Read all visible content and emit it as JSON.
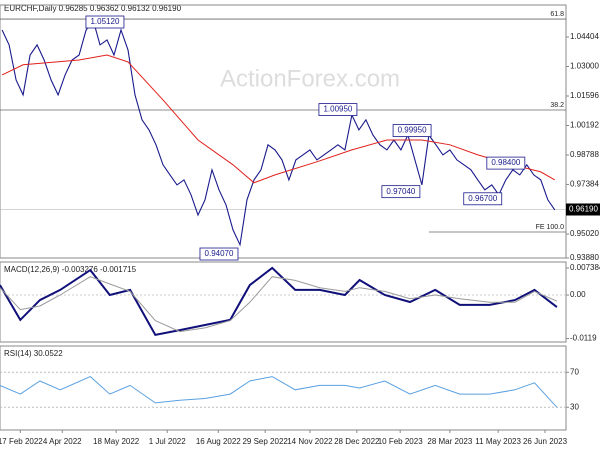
{
  "header": "EURCHF,Daily  0.96285 0.96362 0.96132 0.96190",
  "watermark": "ActionForex.com",
  "chart_data": [
    {
      "type": "line",
      "title": "EURCHF,Daily  0.96285 0.96362 0.96132 0.96190",
      "x": [
        0,
        1,
        2,
        3,
        4,
        5,
        6,
        7,
        8,
        9,
        10,
        11,
        12,
        13,
        14,
        15,
        16,
        17,
        18,
        19,
        20,
        21,
        22,
        23,
        24,
        25,
        26,
        27,
        28,
        29,
        30,
        31,
        32,
        33,
        34,
        35,
        36,
        37,
        38,
        39,
        40,
        41,
        42,
        43,
        44,
        45,
        46,
        47,
        48,
        49,
        50,
        51,
        52,
        53,
        54,
        55,
        56,
        57,
        58,
        59,
        60,
        61,
        62,
        63,
        64,
        65,
        66,
        67,
        68,
        69,
        70,
        71,
        72,
        73,
        74,
        75,
        76,
        77,
        78,
        79
      ],
      "xlim": [
        -0.3,
        80.6
      ],
      "xticks": [
        {
          "value": 2.6,
          "label": "17 Feb 2022"
        },
        {
          "value": 8.6,
          "label": "4 Apr 2022"
        },
        {
          "value": 16.3,
          "label": "18 May 2022"
        },
        {
          "value": 23.6,
          "label": "1 Jul 2022"
        },
        {
          "value": 30.9,
          "label": "16 Aug 2022"
        },
        {
          "value": 37.6,
          "label": "29 Sep 2022"
        },
        {
          "value": 44,
          "label": "14 Nov 2022"
        },
        {
          "value": 50.7,
          "label": "28 Dec 2022"
        },
        {
          "value": 56.9,
          "label": "10 Feb 2023"
        },
        {
          "value": 64,
          "label": "28 Mar 2023"
        },
        {
          "value": 70.9,
          "label": "11 May 2023"
        },
        {
          "value": 77.6,
          "label": "26 Jun 2023"
        }
      ],
      "ylim": [
        0.9388,
        1.0593
      ],
      "yticks": [
        {
          "value": 1.04404,
          "label": "1.04404"
        },
        {
          "value": 1.03,
          "label": "1.03000"
        },
        {
          "value": 1.01596,
          "label": "1.01596"
        },
        {
          "value": 1.00192,
          "label": "1.00192"
        },
        {
          "value": 0.98788,
          "label": "0.98788"
        },
        {
          "value": 0.97384,
          "label": "0.97384"
        },
        {
          "value": 0.9502,
          "label": "0.95020"
        },
        {
          "value": 0.9388,
          "label": "0.93880"
        }
      ],
      "series": [
        {
          "name": "EURCHF",
          "color": "#1a1a8c",
          "values": [
            1.0474,
            1.0403,
            1.0236,
            1.0165,
            1.0355,
            1.0403,
            1.0331,
            1.0236,
            1.0165,
            1.026,
            1.0331,
            1.0355,
            1.0474,
            1.0522,
            1.0403,
            1.0427,
            1.0355,
            1.0474,
            1.0379,
            1.0165,
            1.0046,
            0.9998,
            0.9927,
            0.9832,
            0.9784,
            0.9736,
            0.976,
            0.9689,
            0.9593,
            0.9665,
            0.9808,
            0.9713,
            0.9641,
            0.9522,
            0.9451,
            0.9665,
            0.976,
            0.9808,
            0.9927,
            0.9903,
            0.9855,
            0.976,
            0.9855,
            0.9879,
            0.9903,
            0.9855,
            0.9879,
            0.9903,
            0.9927,
            0.9903,
            1.0069,
            0.9998,
            1.0046,
            0.9974,
            0.9927,
            0.9903,
            0.995,
            0.9903,
            0.9974,
            0.9855,
            0.9736,
            0.9974,
            0.9927,
            0.9879,
            0.9903,
            0.9855,
            0.9832,
            0.9808,
            0.976,
            0.9713,
            0.9736,
            0.9689,
            0.976,
            0.9808,
            0.9784,
            0.9832,
            0.9784,
            0.976,
            0.9665,
            0.9617
          ]
        },
        {
          "name": "MA",
          "color": "#e0201b",
          "x": [
            0,
            3,
            11,
            15,
            18,
            23,
            28,
            33,
            36,
            39,
            45,
            50,
            55,
            60,
            64,
            68,
            73,
            77,
            79
          ],
          "values": [
            1.026,
            1.0308,
            1.0331,
            1.0355,
            1.0322,
            1.0141,
            0.995,
            0.9832,
            0.9746,
            0.9784,
            0.9846,
            0.9903,
            0.995,
            0.995,
            0.9927,
            0.9879,
            0.9832,
            0.9798,
            0.976
          ]
        }
      ],
      "levels": [
        {
          "label": "61.8",
          "value": 1.0526
        },
        {
          "label": "38.2",
          "value": 1.0093
        },
        {
          "label": "FE 100.0",
          "value": 0.9512,
          "from": 61
        }
      ],
      "last_price": {
        "value": 0.9619,
        "label": "0.96190"
      },
      "annotations": [
        {
          "text": "1.05120",
          "x": 14.7,
          "value": 1.0512
        },
        {
          "text": "1.00950",
          "x": 48,
          "value": 1.0095
        },
        {
          "text": "0.99950",
          "x": 58.6,
          "value": 0.9995
        },
        {
          "text": "0.98400",
          "x": 72,
          "value": 0.984
        },
        {
          "text": "0.97040",
          "x": 57,
          "value": 0.9704
        },
        {
          "text": "0.96700",
          "x": 68.7,
          "value": 0.967
        },
        {
          "text": "0.94070",
          "x": 31,
          "value": 0.9407
        }
      ]
    },
    {
      "type": "line",
      "title": "MACD(12,26,9) -0.003276 -0.001715",
      "x": [
        -0.3,
        2.6,
        5.4,
        8.3,
        12.6,
        15.4,
        18.3,
        21.9,
        25.4,
        29,
        32.6,
        35.4,
        38.6,
        41.9,
        45.4,
        49,
        51.1,
        54.7,
        58.3,
        61.9,
        65.4,
        69.7,
        73.3,
        76.1,
        79.3
      ],
      "xlim": [
        -0.3,
        80.6
      ],
      "ylim": [
        -0.01284,
        0.00902
      ],
      "yticks": [
        {
          "value": 0.007384,
          "label": "0.007384"
        },
        {
          "value": 0,
          "label": "0.00"
        },
        {
          "value": -0.0119,
          "label": "-0.0119"
        }
      ],
      "series": [
        {
          "name": "MACD",
          "color": "#10107a",
          "values": [
            0.0027,
            -0.0068,
            -0.0014,
            0.0014,
            0.0068,
            0,
            0.0014,
            -0.0109,
            -0.0096,
            -0.0082,
            -0.0068,
            0.0027,
            0.0074,
            0.0014,
            0.0014,
            0,
            0.0041,
            0,
            -0.0019,
            0.0014,
            -0.0027,
            -0.0027,
            -0.0014,
            0.0014,
            -0.0033
          ]
        },
        {
          "name": "Signal",
          "color": "#9a9a9a",
          "values": [
            0.002,
            -0.004,
            -0.003,
            0,
            0.005,
            0.003,
            0.001,
            -0.007,
            -0.01,
            -0.009,
            -0.007,
            -0.002,
            0.005,
            0.004,
            0.002,
            0.001,
            0.002,
            0.001,
            -0.001,
            0,
            -0.001,
            -0.002,
            -0.002,
            0.001,
            -0.0017
          ]
        }
      ]
    },
    {
      "type": "line",
      "title": "RSI(14) 30.0522",
      "x": [
        -0.3,
        2.6,
        5.4,
        8.3,
        12.6,
        15.4,
        18.3,
        21.9,
        25.4,
        29,
        32.6,
        35.4,
        38.6,
        41.9,
        45.4,
        49,
        51.1,
        54.7,
        58.3,
        61.9,
        65.4,
        69.7,
        73.3,
        76.1,
        79.3
      ],
      "xlim": [
        -0.3,
        80.6
      ],
      "ylim": [
        4,
        100
      ],
      "yticks": [
        70,
        30
      ],
      "series": [
        {
          "name": "RSI",
          "color": "#5aa0e0",
          "values": [
            55,
            45,
            60,
            50,
            65,
            45,
            55,
            35,
            38,
            40,
            45,
            60,
            65,
            50,
            55,
            55,
            52,
            60,
            45,
            55,
            45,
            45,
            50,
            58,
            30
          ]
        }
      ]
    }
  ]
}
